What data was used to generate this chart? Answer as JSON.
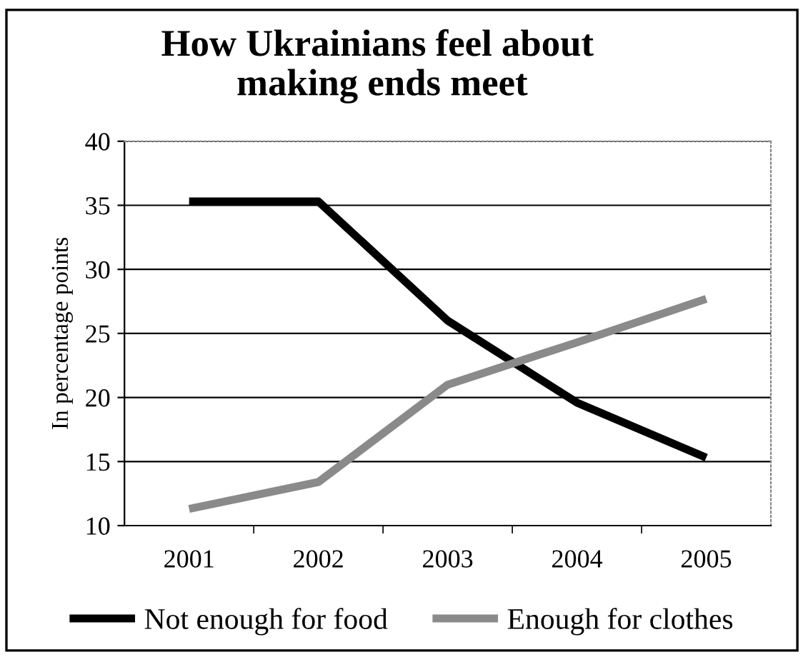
{
  "chart_data": {
    "type": "line",
    "title": "How Ukrainians feel about\n        making ends meet",
    "ylabel": "In percentage points",
    "categories": [
      "2001",
      "2002",
      "2003",
      "2004",
      "2005"
    ],
    "series": [
      {
        "name": "Not enough for food",
        "color": "#000000",
        "values": [
          35.3,
          35.3,
          26,
          19.6,
          15.3
        ]
      },
      {
        "name": "Enough for clothes",
        "color": "#8a8a8a",
        "values": [
          11.3,
          13.4,
          21,
          24.3,
          27.7
        ]
      }
    ],
    "ylim": [
      10,
      40
    ],
    "yticks": [
      10,
      15,
      20,
      25,
      30,
      35,
      40
    ],
    "grid": "y",
    "legend": "bottom",
    "marker": "none",
    "line_style": "solid"
  }
}
